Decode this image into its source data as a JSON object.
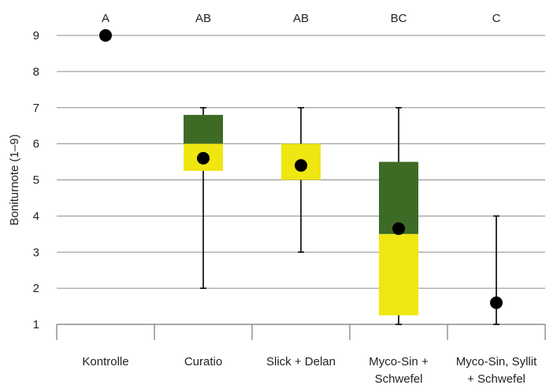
{
  "chart_data": {
    "type": "box",
    "ylabel": "Boniturnote (1–9)",
    "ylim": [
      1,
      9
    ],
    "yticks": [
      1,
      2,
      3,
      4,
      5,
      6,
      7,
      8,
      9
    ],
    "grid": true,
    "colors": {
      "upper_box": "#3d6b26",
      "lower_box": "#f0e612",
      "median_marker": "#000000",
      "whisker": "#000000"
    },
    "categories": [
      {
        "label": [
          "Kontrolle"
        ],
        "group": "A",
        "whisker_min": null,
        "whisker_max": null,
        "q1": null,
        "q2": null,
        "q3": null,
        "mean": 9.0
      },
      {
        "label": [
          "Curatio"
        ],
        "group": "AB",
        "whisker_min": 2.0,
        "whisker_max": 7.0,
        "q1": 5.25,
        "q2": 6.0,
        "q3": 6.8,
        "mean": 5.6
      },
      {
        "label": [
          "Slick + Delan"
        ],
        "group": "AB",
        "whisker_min": 3.0,
        "whisker_max": 7.0,
        "q1": 5.0,
        "q2": 6.0,
        "q3": 6.0,
        "mean": 5.4
      },
      {
        "label": [
          "Myco-Sin +",
          "Schwefel"
        ],
        "group": "BC",
        "whisker_min": 1.0,
        "whisker_max": 7.0,
        "q1": 1.25,
        "q2": 3.5,
        "q3": 5.5,
        "mean": 3.65
      },
      {
        "label": [
          "Myco-Sin, Syllit",
          "+ Schwefel"
        ],
        "group": "C",
        "whisker_min": 1.0,
        "whisker_max": 4.0,
        "q1": null,
        "q2": null,
        "q3": null,
        "mean": 1.6
      }
    ]
  }
}
